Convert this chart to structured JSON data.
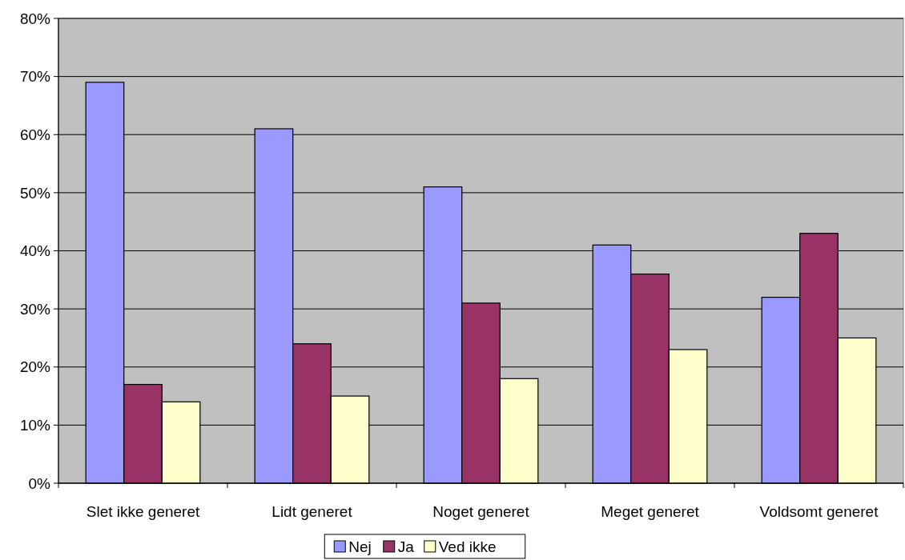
{
  "chart_data": {
    "type": "bar",
    "categories": [
      "Slet ikke generet",
      "Lidt generet",
      "Noget generet",
      "Meget generet",
      "Voldsomt generet"
    ],
    "series": [
      {
        "name": "Nej",
        "color": "#9999ff",
        "values": [
          69,
          61,
          51,
          41,
          32
        ]
      },
      {
        "name": "Ja",
        "color": "#993366",
        "values": [
          17,
          24,
          31,
          36,
          43
        ]
      },
      {
        "name": "Ved ikke",
        "color": "#ffffcc",
        "values": [
          14,
          15,
          18,
          23,
          25
        ]
      }
    ],
    "ylim": [
      0,
      80
    ],
    "yticks": [
      {
        "value": 0,
        "label": "0%"
      },
      {
        "value": 10,
        "label": "10%"
      },
      {
        "value": 20,
        "label": "20%"
      },
      {
        "value": 30,
        "label": "30%"
      },
      {
        "value": 40,
        "label": "40%"
      },
      {
        "value": 50,
        "label": "50%"
      },
      {
        "value": 60,
        "label": "60%"
      },
      {
        "value": 70,
        "label": "70%"
      },
      {
        "value": 80,
        "label": "80%"
      }
    ],
    "grid": "y",
    "legend": "bottom"
  }
}
